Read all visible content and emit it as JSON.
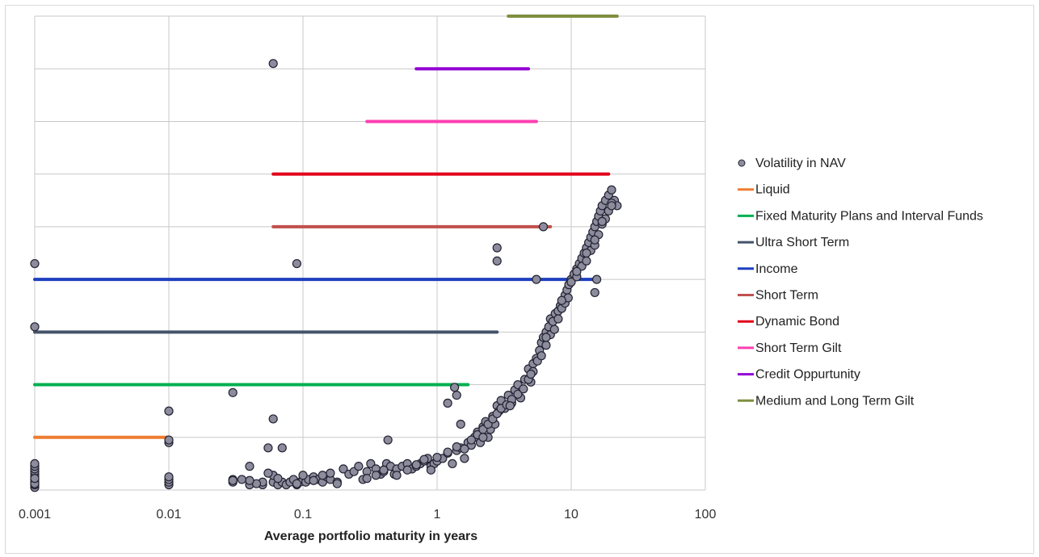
{
  "chart_data": {
    "type": "scatter",
    "title": "",
    "xlabel": "Average portfolio maturity in years",
    "ylabel": "",
    "x_scale": "log",
    "xlim": [
      0.001,
      100
    ],
    "ylim": [
      0,
      9
    ],
    "x_ticks": [
      {
        "value": 0.001,
        "label": "0.001"
      },
      {
        "value": 0.01,
        "label": "0.01"
      },
      {
        "value": 0.1,
        "label": "0.1"
      },
      {
        "value": 1,
        "label": "1"
      },
      {
        "value": 10,
        "label": "10"
      },
      {
        "value": 100,
        "label": "100"
      }
    ],
    "y_gridlines": [
      0,
      1,
      2,
      3,
      4,
      5,
      6,
      7,
      8,
      9
    ],
    "grid": true,
    "legend_position": "right",
    "scatter_series": {
      "name": "Volatility in NAV",
      "color": "#8c8c9c",
      "edge_color": "#222233",
      "x": [
        0.001,
        0.001,
        0.001,
        0.001,
        0.001,
        0.001,
        0.001,
        0.001,
        0.001,
        0.001,
        0.01,
        0.01,
        0.01,
        0.01,
        0.01,
        0.01,
        0.03,
        0.03,
        0.04,
        0.04,
        0.05,
        0.05,
        0.055,
        0.06,
        0.06,
        0.065,
        0.07,
        0.07,
        0.075,
        0.08,
        0.085,
        0.09,
        0.095,
        0.1,
        0.105,
        0.11,
        0.12,
        0.13,
        0.14,
        0.15,
        0.16,
        0.18,
        0.2,
        0.22,
        0.24,
        0.26,
        0.28,
        0.3,
        0.32,
        0.35,
        0.38,
        0.4,
        0.42,
        0.45,
        0.48,
        0.5,
        0.55,
        0.6,
        0.65,
        0.7,
        0.75,
        0.8,
        0.85,
        0.9,
        0.95,
        1.0,
        1.1,
        1.2,
        1.3,
        1.4,
        1.5,
        1.6,
        1.7,
        1.8,
        1.9,
        2.0,
        2.1,
        2.2,
        2.3,
        2.4,
        2.5,
        2.6,
        2.7,
        2.8,
        2.9,
        3.0,
        3.2,
        3.4,
        3.6,
        3.8,
        4.0,
        4.2,
        4.5,
        4.8,
        5.0,
        5.2,
        5.5,
        5.8,
        6.0,
        6.2,
        6.5,
        6.8,
        7.0,
        7.3,
        7.6,
        8.0,
        8.3,
        8.6,
        9.0,
        9.3,
        9.6,
        10,
        10.5,
        11,
        11.5,
        12,
        12.5,
        13,
        13.5,
        14,
        14.5,
        15,
        15.5,
        16,
        16.5,
        17,
        18,
        19,
        20,
        21,
        22,
        0.001,
        0.001,
        0.03,
        0.06,
        0.09,
        0.065,
        0.055,
        0.045,
        0.04,
        0.035,
        0.1,
        0.12,
        0.14,
        0.16,
        0.18,
        0.3,
        0.35,
        0.4,
        0.5,
        0.6,
        0.7,
        0.8,
        0.9,
        1.0,
        1.2,
        1.4,
        1.6,
        1.8,
        2.0,
        2.2,
        2.4,
        2.6,
        2.8,
        3.0,
        3.3,
        3.6,
        4.0,
        4.4,
        4.8,
        5.2,
        5.6,
        6.0,
        6.5,
        7.0,
        7.5,
        8.0,
        8.5,
        9.0,
        9.5,
        10,
        11,
        12,
        13,
        14,
        15,
        16,
        17,
        18,
        19,
        20,
        1.5,
        2.2,
        3.5,
        5.0,
        6.5,
        8.5,
        11,
        13,
        15,
        17,
        2.8,
        5.5,
        15,
        20,
        1.4,
        0.43,
        1.2
      ],
      "y": [
        0.05,
        0.1,
        0.15,
        0.2,
        0.25,
        0.3,
        0.35,
        0.4,
        0.45,
        0.5,
        0.1,
        0.15,
        0.2,
        0.25,
        0.9,
        1.5,
        0.15,
        0.2,
        0.1,
        0.45,
        0.1,
        0.15,
        0.8,
        0.15,
        1.35,
        0.1,
        0.15,
        0.8,
        0.1,
        0.15,
        0.2,
        0.1,
        0.15,
        0.2,
        0.15,
        0.2,
        0.25,
        0.2,
        0.15,
        0.25,
        0.2,
        0.15,
        0.4,
        0.3,
        0.35,
        0.45,
        0.2,
        0.35,
        0.5,
        0.4,
        0.3,
        0.35,
        0.5,
        0.45,
        0.3,
        0.4,
        0.45,
        0.5,
        0.4,
        0.45,
        0.5,
        0.55,
        0.6,
        0.45,
        0.5,
        0.55,
        0.6,
        0.7,
        0.5,
        0.75,
        0.8,
        0.6,
        0.9,
        0.85,
        1.0,
        1.1,
        0.9,
        1.2,
        1.3,
        1.0,
        1.15,
        1.4,
        1.25,
        1.6,
        1.5,
        1.7,
        1.55,
        1.8,
        1.65,
        1.9,
        2.0,
        1.75,
        2.1,
        2.3,
        2.05,
        2.4,
        2.5,
        2.65,
        2.8,
        2.9,
        3.0,
        3.1,
        3.25,
        3.2,
        3.35,
        3.4,
        3.5,
        3.6,
        3.7,
        3.8,
        3.9,
        4.0,
        4.1,
        4.2,
        4.3,
        4.4,
        4.5,
        4.6,
        4.7,
        4.8,
        4.9,
        5.0,
        5.1,
        5.2,
        5.3,
        5.4,
        5.5,
        5.6,
        5.7,
        5.5,
        5.4,
        0.12,
        0.22,
        0.18,
        0.28,
        0.12,
        0.22,
        0.32,
        0.12,
        0.18,
        0.2,
        0.28,
        0.18,
        0.28,
        0.32,
        0.12,
        0.22,
        0.28,
        0.38,
        0.28,
        0.38,
        0.48,
        0.58,
        0.38,
        0.62,
        0.72,
        0.82,
        0.78,
        0.95,
        1.05,
        1.15,
        1.25,
        1.35,
        1.45,
        1.55,
        1.62,
        1.72,
        1.82,
        1.92,
        2.1,
        2.25,
        2.45,
        2.55,
        2.75,
        2.95,
        3.05,
        3.25,
        3.45,
        3.55,
        3.65,
        3.95,
        4.05,
        4.25,
        4.35,
        4.55,
        4.65,
        4.85,
        5.05,
        5.15,
        5.3,
        5.45,
        1.25,
        1.0,
        1.6,
        2.2,
        2.9,
        3.6,
        4.15,
        4.5,
        4.75,
        5.1,
        4.35,
        4.0,
        3.75,
        5.4,
        1.8,
        0.95,
        1.65
      ]
    },
    "range_series": [
      {
        "name": "Liquid",
        "color": "#ed7d31",
        "x_start": 0.001,
        "x_end": 0.01,
        "y": 1
      },
      {
        "name": "Fixed Maturity Plans and Interval Funds",
        "color": "#00b050",
        "x_start": 0.001,
        "x_end": 1.7,
        "y": 2
      },
      {
        "name": "Ultra Short Term",
        "color": "#44546a",
        "x_start": 0.001,
        "x_end": 2.8,
        "y": 3
      },
      {
        "name": "Income",
        "color": "#1f3fbf",
        "x_start": 0.001,
        "x_end": 16,
        "y": 4
      },
      {
        "name": "Short Term",
        "color": "#c0504d",
        "x_start": 0.06,
        "x_end": 7,
        "y": 5
      },
      {
        "name": "Dynamic Bond",
        "color": "#e2001a",
        "x_start": 0.06,
        "x_end": 19,
        "y": 6
      },
      {
        "name": "Short Term Gilt",
        "color": "#ff3fb0",
        "x_start": 0.3,
        "x_end": 5.5,
        "y": 7
      },
      {
        "name": "Credit Oppurtunity",
        "color": "#9400d3",
        "x_start": 0.7,
        "x_end": 4.8,
        "y": 8
      },
      {
        "name": "Medium and Long Term Gilt",
        "color": "#7f8f3f",
        "x_start": 3.4,
        "x_end": 22,
        "y": 9
      }
    ],
    "outliers": {
      "x": [
        0.001,
        0.001,
        0.09,
        0.06,
        0.03,
        1.35,
        0.01,
        0.01,
        2.8,
        6.2,
        15.5
      ],
      "y": [
        4.3,
        3.1,
        4.3,
        8.1,
        1.85,
        1.95,
        1.5,
        0.95,
        4.6,
        5.0,
        4.0
      ]
    }
  }
}
